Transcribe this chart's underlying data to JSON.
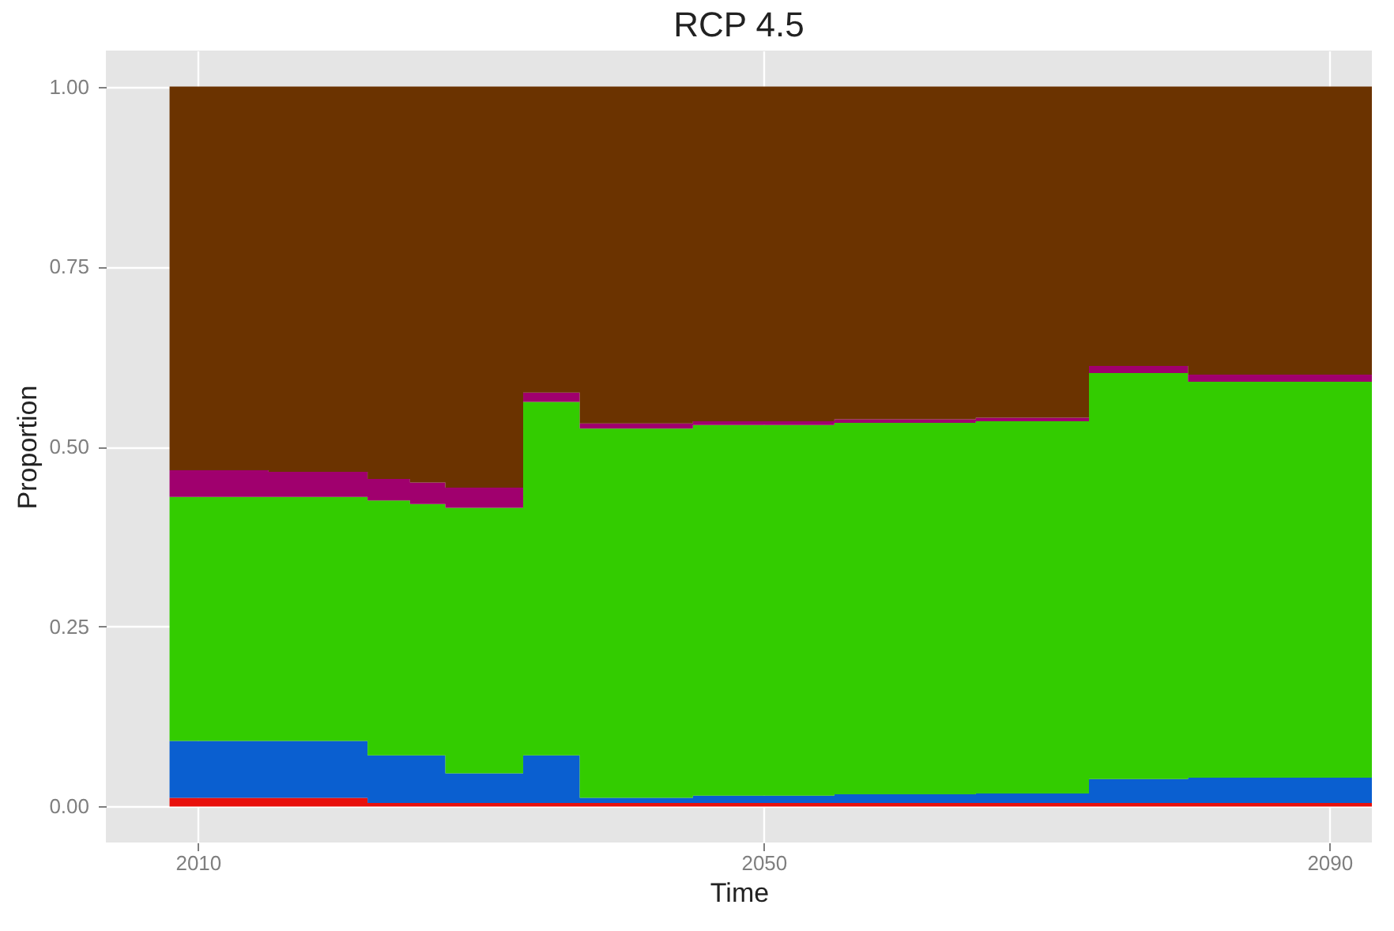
{
  "chart_data": {
    "type": "area",
    "title": "RCP 4.5",
    "xlabel": "Time",
    "ylabel": "Proportion",
    "x": [
      2008,
      2015,
      2022,
      2025,
      2027.5,
      2033,
      2037,
      2045,
      2055,
      2065,
      2073,
      2080,
      2093
    ],
    "series": [
      {
        "color": "#e8100c",
        "values": [
          0.012,
          0.012,
          0.005,
          0.005,
          0.005,
          0.005,
          0.005,
          0.005,
          0.005,
          0.005,
          0.005,
          0.005,
          0.005
        ]
      },
      {
        "color": "#0a5fd0",
        "values": [
          0.079,
          0.079,
          0.066,
          0.066,
          0.041,
          0.066,
          0.007,
          0.01,
          0.012,
          0.013,
          0.033,
          0.035,
          0.033
        ]
      },
      {
        "color": "#33cc00",
        "values": [
          0.339,
          0.339,
          0.354,
          0.349,
          0.369,
          0.491,
          0.513,
          0.515,
          0.516,
          0.517,
          0.564,
          0.55,
          0.547
        ]
      },
      {
        "color": "#a0006e",
        "values": [
          0.037,
          0.035,
          0.03,
          0.03,
          0.028,
          0.013,
          0.007,
          0.005,
          0.005,
          0.005,
          0.01,
          0.01,
          0.013
        ]
      },
      {
        "color": "#6b3300",
        "values": [
          0.533,
          0.535,
          0.545,
          0.55,
          0.557,
          0.425,
          0.468,
          0.465,
          0.462,
          0.46,
          0.388,
          0.4,
          0.402
        ]
      }
    ],
    "stacked": true,
    "xlim": [
      2003.5,
      2093
    ],
    "xticks": [
      2010,
      2050,
      2090
    ],
    "ylim": [
      -0.05,
      1.05
    ],
    "yticks": [
      {
        "value": 0,
        "label": "0.00"
      },
      0.25,
      {
        "value": 0.5,
        "label": "0.50"
      },
      0.75,
      {
        "value": 1,
        "label": "1.00"
      }
    ],
    "grid": true
  }
}
